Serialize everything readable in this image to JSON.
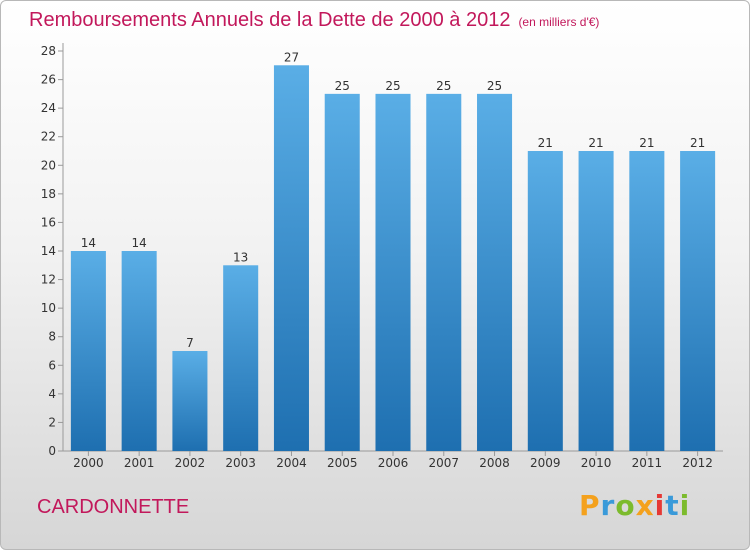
{
  "title": "Remboursements Annuels de la Dette de 2000 à 2012",
  "subtitle": "(en milliers d'€)",
  "commune": "CARDONNETTE",
  "logo": {
    "letters": [
      "P",
      "r",
      "o",
      "x",
      "i",
      "t",
      "i"
    ],
    "colors": [
      "#f4a11d",
      "#3a9ad9",
      "#7cbb2d",
      "#f4a11d",
      "#e53935",
      "#3a9ad9",
      "#7cbb2d"
    ]
  },
  "colors": {
    "bar_top": "#5aaee6",
    "bar_bottom": "#1e6fb0",
    "title": "#c2185b"
  },
  "chart_data": {
    "type": "bar",
    "categories": [
      "2000",
      "2001",
      "2002",
      "2003",
      "2004",
      "2005",
      "2006",
      "2007",
      "2008",
      "2009",
      "2010",
      "2011",
      "2012"
    ],
    "values": [
      14,
      14,
      7,
      13,
      27,
      25,
      25,
      25,
      25,
      21,
      21,
      21,
      21
    ],
    "ylim": [
      0,
      28
    ],
    "yticks": [
      0,
      2,
      4,
      6,
      8,
      10,
      12,
      14,
      16,
      18,
      20,
      22,
      24,
      26,
      28
    ],
    "grid": false
  }
}
